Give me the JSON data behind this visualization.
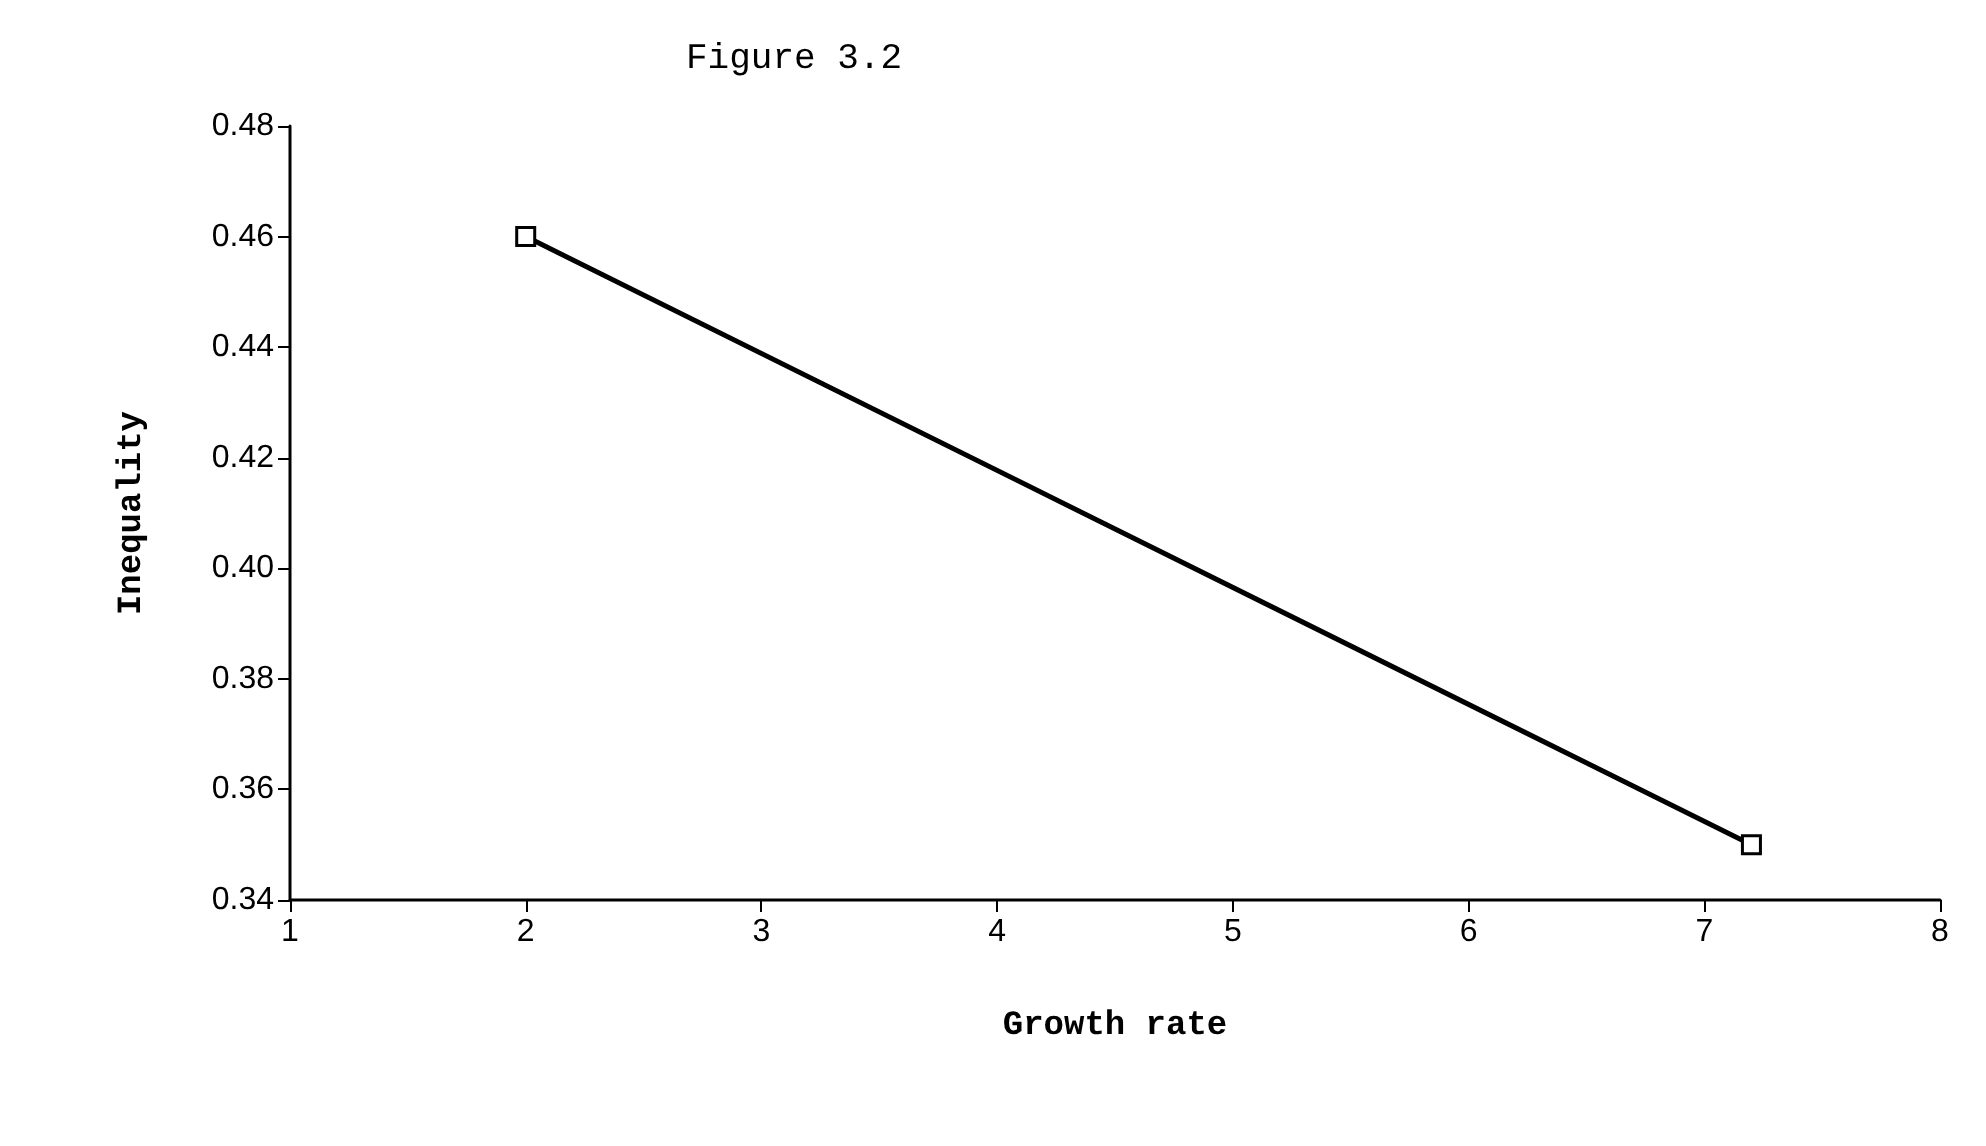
{
  "chart_data": {
    "type": "line",
    "title": "Figure 3.2",
    "xlabel": "Growth rate",
    "ylabel": "Inequality",
    "x": [
      2,
      7.2
    ],
    "series": [
      {
        "color": "#000000",
        "values": [
          0.46,
          0.35
        ]
      }
    ],
    "xlim": [
      1,
      8
    ],
    "xticks": [
      1,
      2,
      3,
      4,
      5,
      6,
      7,
      8
    ],
    "ylim": [
      0.34,
      0.48
    ],
    "yticks": [
      0.34,
      0.36,
      0.38,
      {
        "value": 0.4,
        "label": "0.40"
      },
      0.42,
      0.44,
      0.46,
      0.48
    ],
    "grid": false,
    "marker": "square",
    "line_style": "solid"
  }
}
